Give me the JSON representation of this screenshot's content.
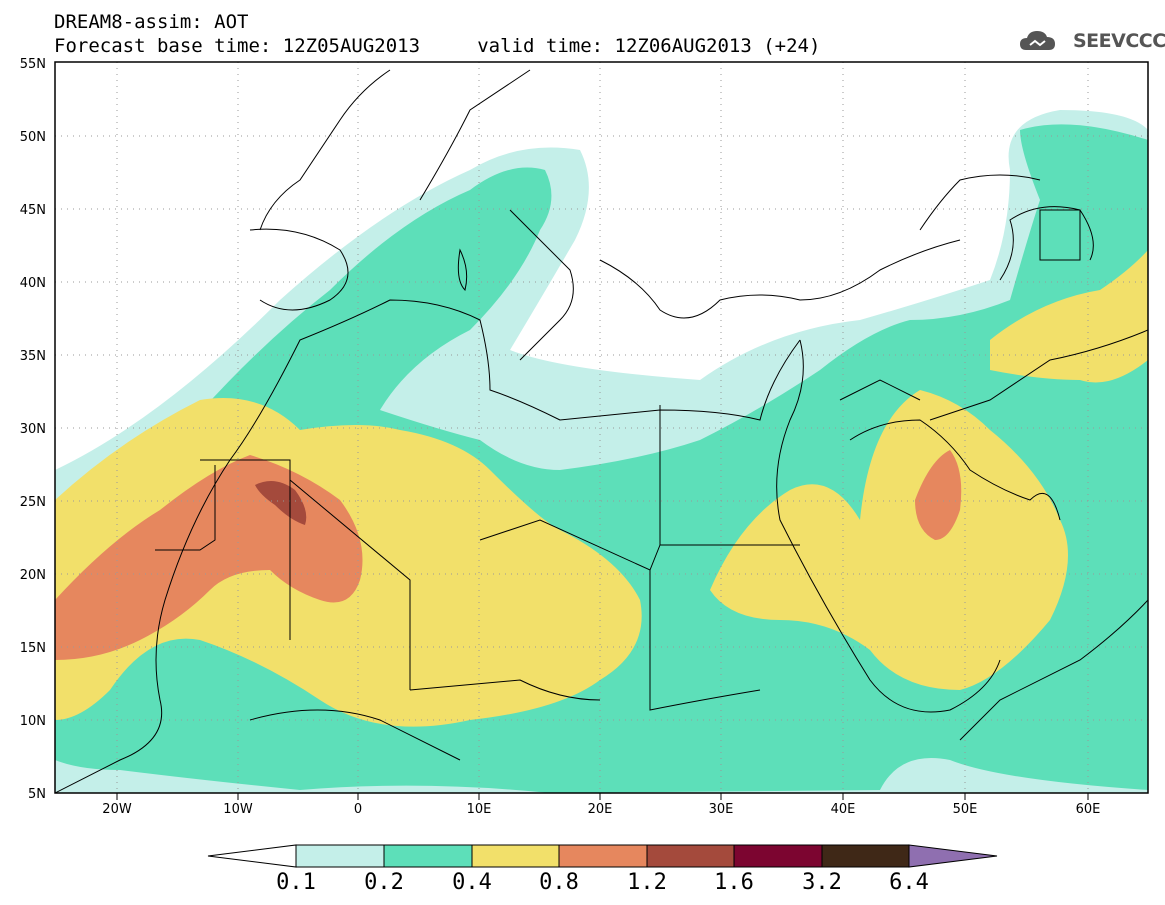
{
  "title": {
    "line1": "DREAM8-assim: AOT",
    "line2": "Forecast base time: 12Z05AUG2013     valid time: 12Z06AUG2013 (+24)"
  },
  "logo": {
    "text": "SEEVCCC",
    "icon": "cloud-icon"
  },
  "map": {
    "variable": "AOT",
    "lon_range": [
      -25,
      65
    ],
    "lat_range": [
      5,
      55
    ],
    "grid": true,
    "lon_ticks": [
      "20W",
      "10W",
      "0",
      "10E",
      "20E",
      "30E",
      "40E",
      "50E",
      "60E"
    ],
    "lat_ticks": [
      "5N",
      "10N",
      "15N",
      "20N",
      "25N",
      "30N",
      "35N",
      "40N",
      "45N",
      "50N",
      "55N"
    ]
  },
  "colorbar": {
    "levels": [
      "0.1",
      "0.2",
      "0.4",
      "0.8",
      "1.2",
      "1.6",
      "3.2",
      "6.4"
    ],
    "colors": [
      "#ffffff",
      "#c4efe9",
      "#5ddfb9",
      "#f2e06a",
      "#e6875e",
      "#a44a3c",
      "#7c0530",
      "#3f2817",
      "#8f6fb0"
    ]
  }
}
